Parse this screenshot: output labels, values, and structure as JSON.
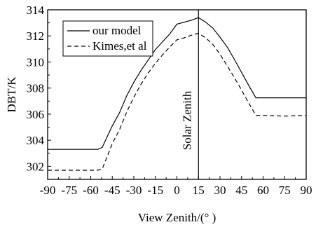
{
  "chart_data": {
    "type": "line",
    "xlabel": "View Zenith/(° )",
    "ylabel": "DBT/K",
    "xlim": [
      -90,
      90
    ],
    "ylim": [
      301,
      314
    ],
    "xticks": [
      -90,
      -75,
      -60,
      -45,
      -30,
      -15,
      0,
      15,
      30,
      45,
      60,
      75,
      90
    ],
    "yticks": [
      302,
      304,
      306,
      308,
      310,
      312,
      314
    ],
    "grid": false,
    "legend_position": "top-left",
    "annotation": {
      "text": "Solar Zenith",
      "x": 15
    },
    "series": [
      {
        "name": "our model",
        "style": "solid",
        "color": "#000000",
        "x": [
          -90,
          -60,
          -55,
          -52,
          -48,
          -45,
          -40,
          -35,
          -30,
          -25,
          -20,
          -15,
          -10,
          -5,
          0,
          5,
          10,
          15,
          20,
          25,
          30,
          35,
          40,
          45,
          50,
          55,
          60,
          75,
          90
        ],
        "y": [
          303.3,
          303.3,
          303.3,
          303.45,
          304.4,
          305.1,
          306.1,
          307.4,
          308.45,
          309.35,
          310.15,
          310.95,
          311.55,
          312.15,
          312.9,
          313.05,
          313.2,
          313.4,
          313.05,
          312.6,
          311.9,
          311.15,
          310.2,
          309.2,
          308.2,
          307.25,
          307.25,
          307.25,
          307.25
        ]
      },
      {
        "name": "Kimes,et al",
        "style": "dashed",
        "color": "#000000",
        "x": [
          -90,
          -60,
          -55,
          -52,
          -48,
          -45,
          -40,
          -35,
          -30,
          -25,
          -20,
          -15,
          -10,
          -5,
          0,
          5,
          10,
          15,
          20,
          25,
          30,
          35,
          40,
          45,
          50,
          55,
          60,
          75,
          90
        ],
        "y": [
          301.7,
          301.7,
          301.7,
          301.8,
          302.9,
          303.75,
          304.8,
          306.15,
          307.3,
          308.3,
          309.15,
          309.9,
          310.55,
          311.15,
          311.7,
          311.85,
          312.05,
          312.2,
          311.85,
          311.35,
          310.6,
          309.7,
          308.8,
          307.85,
          306.85,
          305.9,
          305.9,
          305.85,
          305.9
        ]
      }
    ]
  }
}
